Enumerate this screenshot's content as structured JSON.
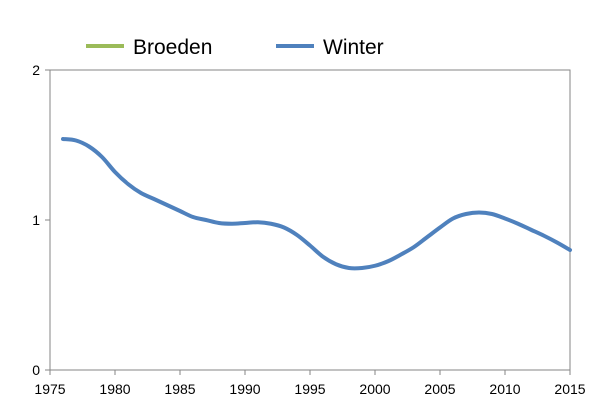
{
  "chart_data": {
    "type": "line",
    "title": "",
    "xlabel": "",
    "ylabel": "",
    "xlim": [
      1975,
      2015
    ],
    "ylim": [
      0,
      2
    ],
    "x_ticks": [
      1975,
      1980,
      1985,
      1990,
      1995,
      2000,
      2005,
      2010,
      2015
    ],
    "y_ticks": [
      0,
      1,
      2
    ],
    "x_tick_labels": [
      "1975",
      "1980",
      "1985",
      "1990",
      "1995",
      "2000",
      "2005",
      "2010",
      "2015"
    ],
    "y_tick_labels": [
      "0",
      "1",
      "2"
    ],
    "grid": false,
    "legend_position": "top",
    "series": [
      {
        "name": "Broeden",
        "color": "#9bbb59",
        "x": [],
        "values": []
      },
      {
        "name": "Winter",
        "color": "#4f81bd",
        "x": [
          1976,
          1977,
          1978,
          1979,
          1980,
          1981,
          1982,
          1983,
          1984,
          1985,
          1986,
          1987,
          1988,
          1989,
          1990,
          1991,
          1992,
          1993,
          1994,
          1995,
          1996,
          1997,
          1998,
          1999,
          2000,
          2001,
          2002,
          2003,
          2004,
          2005,
          2006,
          2007,
          2008,
          2009,
          2010,
          2011,
          2012,
          2013,
          2014,
          2015
        ],
        "values": [
          1.54,
          1.53,
          1.49,
          1.42,
          1.32,
          1.24,
          1.18,
          1.14,
          1.1,
          1.06,
          1.02,
          1.0,
          0.98,
          0.975,
          0.98,
          0.985,
          0.975,
          0.95,
          0.9,
          0.83,
          0.755,
          0.705,
          0.68,
          0.68,
          0.695,
          0.725,
          0.77,
          0.82,
          0.885,
          0.95,
          1.01,
          1.04,
          1.05,
          1.04,
          1.01,
          0.975,
          0.935,
          0.895,
          0.85,
          0.8
        ]
      }
    ]
  }
}
